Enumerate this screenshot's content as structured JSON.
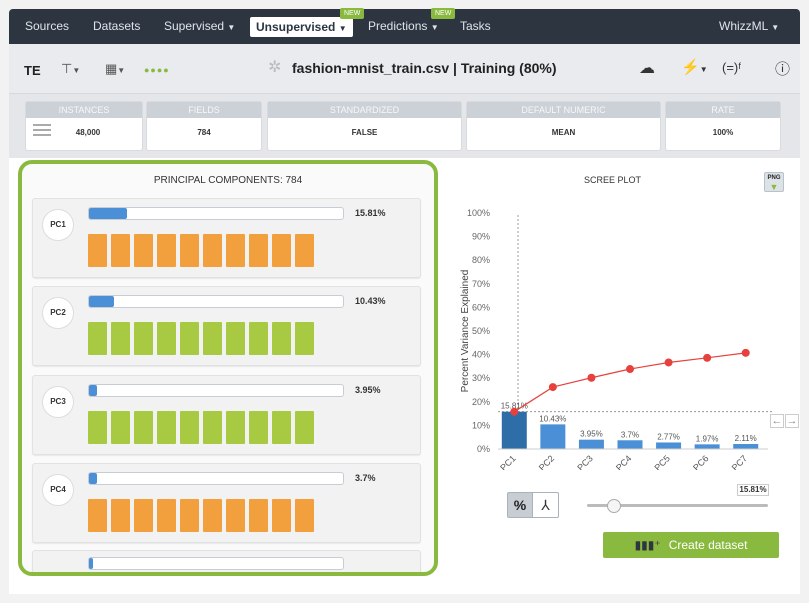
{
  "nav": {
    "items": [
      {
        "label": "Sources"
      },
      {
        "label": "Datasets"
      },
      {
        "label": "Supervised"
      },
      {
        "label": "Unsupervised"
      },
      {
        "label": "Predictions"
      },
      {
        "label": "Tasks"
      }
    ],
    "new_badge": "NEW",
    "user": "WhizzML"
  },
  "toolbar": {
    "te_label": "TE",
    "title": "fashion-mnist_train.csv | Training (80%)",
    "right_icons": [
      "cloud-download-icon",
      "cluster-icon",
      "equation-icon",
      "info-icon"
    ]
  },
  "summary": {
    "stats": [
      {
        "label": "INSTANCES",
        "value": "48,000"
      },
      {
        "label": "FIELDS",
        "value": "784"
      },
      {
        "label": "STANDARDIZED",
        "value": "FALSE"
      },
      {
        "label": "DEFAULT NUMERIC",
        "value": "MEAN"
      },
      {
        "label": "RATE",
        "value": "100%"
      }
    ]
  },
  "pc_panel": {
    "title": "PRINCIPAL COMPONENTS: 784",
    "components": [
      {
        "label": "PC1",
        "pct": "15.81%",
        "fill": 0.15,
        "blocks": 10,
        "color": "#f29f3d"
      },
      {
        "label": "PC2",
        "pct": "10.43%",
        "fill": 0.1,
        "blocks": 10,
        "color": "#a8c942"
      },
      {
        "label": "PC3",
        "pct": "3.95%",
        "fill": 0.03,
        "blocks": 10,
        "color": "#a8c942"
      },
      {
        "label": "PC4",
        "pct": "3.7%",
        "fill": 0.03,
        "blocks": 10,
        "color": "#f29f3d"
      }
    ]
  },
  "scree": {
    "title": "SCREE PLOT",
    "png_label": "PNG",
    "percent_toggle": "%",
    "slider_value": "15.81%",
    "create_button": "Create dataset"
  },
  "chart_data": {
    "type": "bar",
    "title": "SCREE PLOT",
    "ylabel": "Percent Variance Explained",
    "categories": [
      "PC1",
      "PC2",
      "PC3",
      "PC4",
      "PC5",
      "PC6",
      "PC7"
    ],
    "series": [
      {
        "values": [
          15.81,
          10.43,
          3.95,
          3.7,
          2.77,
          1.97,
          2.11
        ]
      },
      {
        "values": [
          15.81,
          26.24,
          30.19,
          33.89,
          36.66,
          38.63,
          40.74
        ]
      }
    ],
    "bar_labels": [
      "15.81%",
      "10.43%",
      "3.95%",
      "3.7%",
      "2.77%",
      "1.97%",
      "2.11%"
    ],
    "yticks": [
      "0%",
      "10%",
      "20%",
      "30%",
      "40%",
      "50%",
      "60%",
      "70%",
      "80%",
      "90%",
      "100%"
    ],
    "ylim": [
      0,
      100
    ],
    "colors": {
      "selected_bar": "#2f6da8",
      "bar": "#4b90d6",
      "line": "#e6413d"
    }
  }
}
